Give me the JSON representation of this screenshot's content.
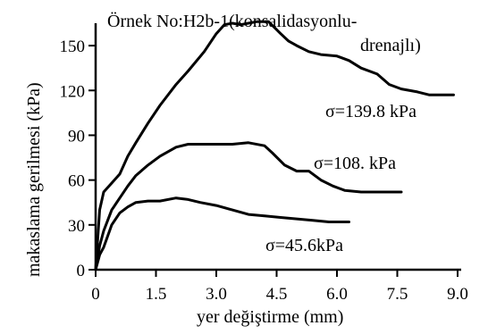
{
  "chart_data": {
    "type": "line",
    "title_lines": [
      "Örnek No:H2b-1(konsalidasyonlu-",
      "drenajlı)"
    ],
    "xlabel": "yer değiştirme (mm)",
    "ylabel": "makaslama gerilmesi (kPa)",
    "xlim": [
      0,
      9.0
    ],
    "ylim": [
      0,
      165
    ],
    "x_ticks": [
      "0",
      "1.5",
      "3.0",
      "4.5",
      "6.0",
      "7.5",
      "9.0"
    ],
    "x_tick_values": [
      0,
      1.5,
      3.0,
      4.5,
      6.0,
      7.5,
      9.0
    ],
    "y_ticks": [
      "0",
      "30",
      "60",
      "90",
      "120",
      "150"
    ],
    "y_tick_values": [
      0,
      30,
      60,
      90,
      120,
      150
    ],
    "grid": false,
    "series": [
      {
        "name": "σ=139.8 kPa",
        "x": [
          0,
          0.1,
          0.2,
          0.4,
          0.6,
          0.8,
          1.0,
          1.3,
          1.6,
          2.0,
          2.3,
          2.7,
          3.0,
          3.2,
          3.4,
          3.6,
          3.8,
          4.0,
          4.3,
          4.6,
          4.8,
          5.0,
          5.3,
          5.6,
          6.0,
          6.3,
          6.6,
          7.0,
          7.3,
          7.6,
          8.0,
          8.3,
          8.6,
          8.9
        ],
        "y": [
          0,
          40,
          52,
          58,
          64,
          76,
          85,
          98,
          110,
          124,
          133,
          146,
          158,
          164,
          165,
          164,
          165,
          166,
          166,
          158,
          153,
          150,
          146,
          144,
          143,
          140,
          135,
          131,
          124,
          121,
          119,
          117,
          117,
          117
        ]
      },
      {
        "name": "σ=108. kPa",
        "x": [
          0,
          0.1,
          0.2,
          0.4,
          0.6,
          0.8,
          1.0,
          1.3,
          1.6,
          2.0,
          2.3,
          2.7,
          3.0,
          3.4,
          3.8,
          4.2,
          4.4,
          4.7,
          5.0,
          5.3,
          5.6,
          5.9,
          6.2,
          6.6,
          7.0,
          7.3,
          7.6
        ],
        "y": [
          0,
          16,
          26,
          40,
          48,
          56,
          63,
          70,
          76,
          82,
          84,
          84,
          84,
          84,
          85,
          83,
          78,
          70,
          66,
          66,
          60,
          56,
          53,
          52,
          52,
          52,
          52
        ]
      },
      {
        "name": "σ=45.6kPa",
        "x": [
          0,
          0.1,
          0.2,
          0.4,
          0.6,
          0.8,
          1.0,
          1.3,
          1.6,
          2.0,
          2.3,
          2.6,
          3.0,
          3.4,
          3.8,
          4.2,
          4.6,
          5.0,
          5.4,
          5.8,
          6.0,
          6.3
        ],
        "y": [
          0,
          10,
          15,
          30,
          38,
          42,
          45,
          46,
          46,
          48,
          47,
          45,
          43,
          40,
          37,
          36,
          35,
          34,
          33,
          32,
          32,
          32
        ]
      }
    ]
  }
}
